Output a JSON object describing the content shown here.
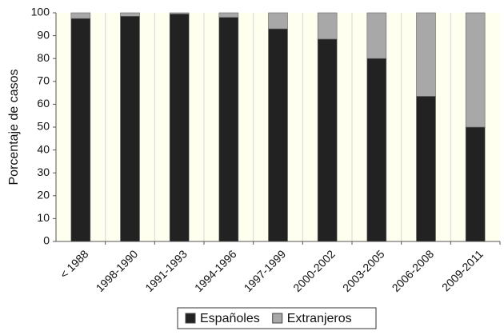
{
  "chart_data": {
    "type": "stacked-bar",
    "ylabel": "Porcentaje de casos",
    "categories": [
      "< 1988",
      "1998-1990",
      "1991-1993",
      "1994-1996",
      "1997-1999",
      "2000-2002",
      "2003-2005",
      "2006-2008",
      "2009-2011"
    ],
    "series": [
      {
        "name": "Españoles",
        "color": "#222222",
        "values": [
          97.5,
          98.5,
          99.5,
          98,
          93,
          88.5,
          80,
          63.5,
          50
        ]
      },
      {
        "name": "Extranjeros",
        "color": "#a8a8a8",
        "values": [
          2.5,
          1.5,
          0.5,
          2,
          7,
          11.5,
          20,
          36.5,
          50
        ]
      }
    ],
    "ylim": [
      0,
      100
    ],
    "yticks": [
      0,
      10,
      20,
      30,
      40,
      50,
      60,
      70,
      80,
      90,
      100
    ],
    "legend": "bottom"
  }
}
